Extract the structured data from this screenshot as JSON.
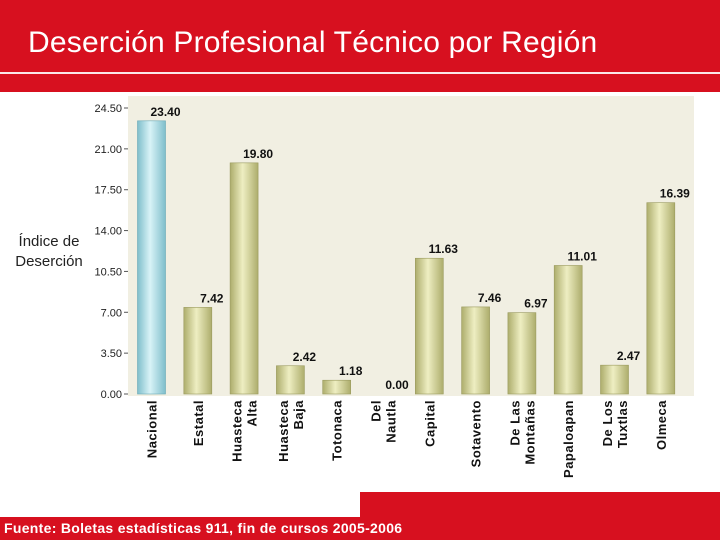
{
  "title": "Deserción Profesional Técnico por Región",
  "footer": "Fuente: Boletas estadísticas 911, fin de cursos 2005-2006",
  "colors": {
    "accent": "#d7101f",
    "nacional_bar": "#9fd4de",
    "region_bar": "#cfcf96",
    "plot_background": "#f1efe2"
  },
  "chart_data": {
    "type": "bar",
    "title": "Deserción Profesional Técnico por Región",
    "ylabel": "Índice de Deserción",
    "xlabel": "",
    "ylim": [
      0,
      24.5
    ],
    "yticks": [
      "0.00",
      "3.50",
      "7.00",
      "10.50",
      "14.00",
      "17.50",
      "21.00",
      "24.50"
    ],
    "grid": false,
    "categories": [
      "Nacional",
      "Estatal",
      "Huasteca Alta",
      "Huasteca Baja",
      "Totonaca",
      "Del Nautla",
      "Capital",
      "Sotavento",
      "De Las Montañas",
      "Papaloapan",
      "De Los Tuxtlas",
      "Olmeca"
    ],
    "values": [
      23.4,
      7.42,
      19.8,
      2.42,
      1.18,
      0.0,
      11.63,
      7.46,
      6.97,
      11.01,
      2.47,
      16.39
    ],
    "value_labels": [
      "23.40",
      "7.42",
      "19.80",
      "2.42",
      "1.18",
      "0.00",
      "11.63",
      "7.46",
      "6.97",
      "11.01",
      "2.47",
      "16.39"
    ]
  }
}
